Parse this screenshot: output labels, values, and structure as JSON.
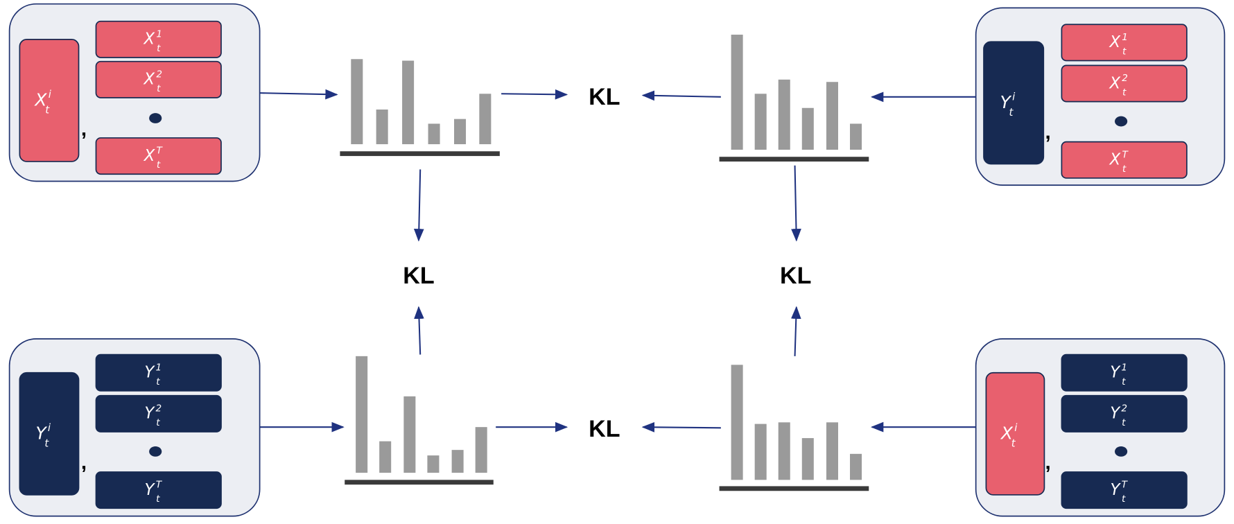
{
  "panels": [
    {
      "main": {
        "base": "X",
        "sup": "i",
        "sub": "t"
      },
      "separator": ",",
      "items": [
        {
          "base": "X",
          "sup": "1",
          "sub": "t"
        },
        {
          "base": "X",
          "sup": "2",
          "sub": "t"
        },
        {
          "base": "X",
          "sup": "T",
          "sub": "t"
        }
      ]
    },
    {
      "main": {
        "base": "Y",
        "sup": "i",
        "sub": "t"
      },
      "separator": ",",
      "items": [
        {
          "base": "X",
          "sup": "1",
          "sub": "t"
        },
        {
          "base": "X",
          "sup": "2",
          "sub": "t"
        },
        {
          "base": "X",
          "sup": "T",
          "sub": "t"
        }
      ]
    },
    {
      "main": {
        "base": "Y",
        "sup": "i",
        "sub": "t"
      },
      "separator": ",",
      "items": [
        {
          "base": "Y",
          "sup": "1",
          "sub": "t"
        },
        {
          "base": "Y",
          "sup": "2",
          "sub": "t"
        },
        {
          "base": "Y",
          "sup": "T",
          "sub": "t"
        }
      ]
    },
    {
      "main": {
        "base": "X",
        "sup": "i",
        "sub": "t"
      },
      "separator": ",",
      "items": [
        {
          "base": "Y",
          "sup": "1",
          "sub": "t"
        },
        {
          "base": "Y",
          "sup": "2",
          "sub": "t"
        },
        {
          "base": "Y",
          "sup": "T",
          "sub": "t"
        }
      ]
    }
  ],
  "kl_labels": [
    "KL",
    "KL",
    "KL",
    "KL"
  ]
}
